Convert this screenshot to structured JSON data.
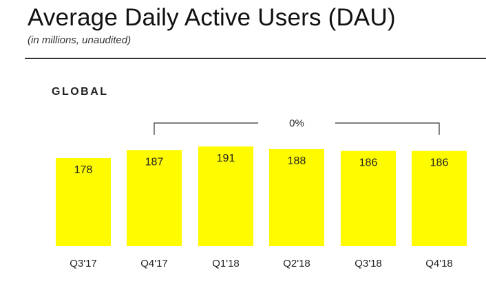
{
  "header": {
    "title": "Average Daily Active Users (DAU)",
    "subtitle": "(in millions, unaudited)"
  },
  "section": {
    "label": "GLOBAL"
  },
  "chart_data": {
    "type": "bar",
    "categories": [
      "Q3'17",
      "Q4'17",
      "Q1'18",
      "Q2'18",
      "Q3'18",
      "Q4'18"
    ],
    "values": [
      178,
      187,
      191,
      188,
      186,
      186
    ],
    "data_labels": [
      "178",
      "187",
      "191",
      "188",
      "186",
      "186"
    ],
    "annotations": [
      {
        "text": "0%",
        "from": "Q4'17",
        "to": "Q4'18"
      }
    ],
    "grid": false,
    "legend": "none",
    "bar_color": "#FFFC00"
  }
}
